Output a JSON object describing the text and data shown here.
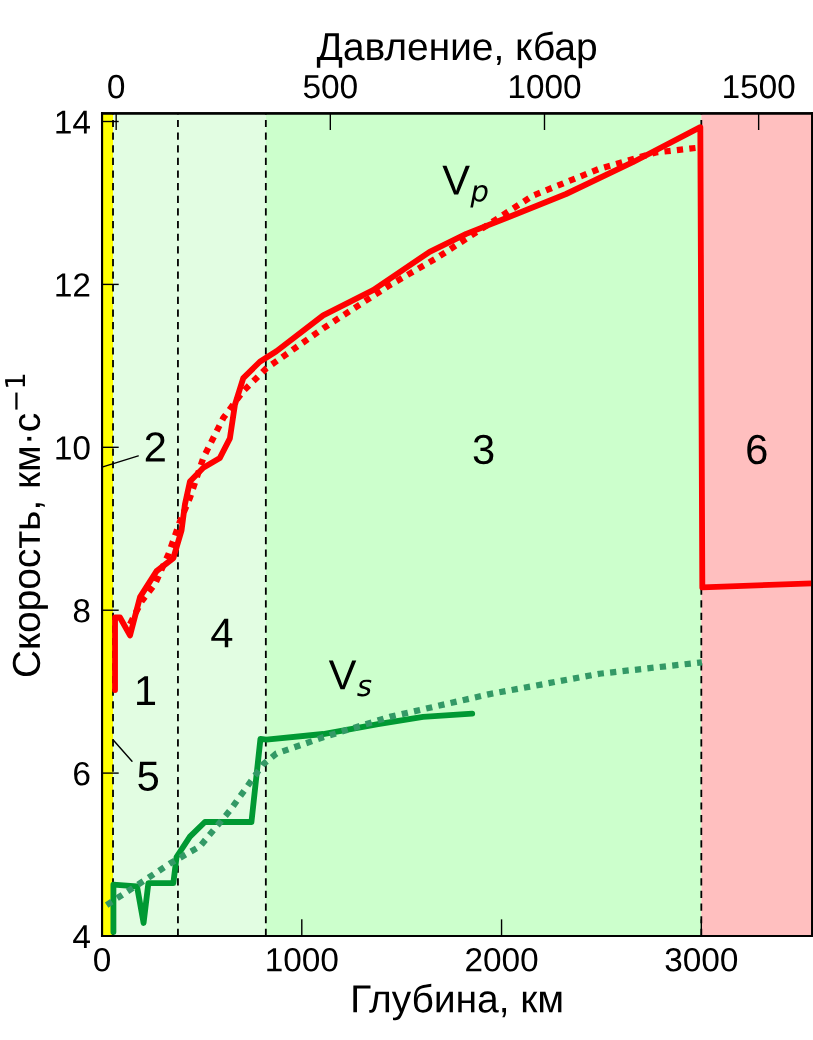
{
  "chart_data": {
    "type": "line",
    "xlabel": "Глубина, км",
    "ylabel": "Скорость, км·с$^{−1}$",
    "x2label": "Давление, кбар",
    "xlim": [
      0,
      3555
    ],
    "ylim": [
      4,
      14.1
    ],
    "xticks": [
      0,
      1000,
      2000,
      3000
    ],
    "yticks": [
      4,
      6,
      8,
      10,
      12,
      14
    ],
    "x2lim": [
      -33,
      1625
    ],
    "x2ticks": [
      0,
      500,
      1000,
      1500
    ],
    "grid": false,
    "bands": [
      {
        "axis": "x",
        "from": 0,
        "to": 55,
        "color": "#ffff00",
        "label": "2"
      },
      {
        "axis": "x",
        "from": 55,
        "to": 380,
        "color": "#e2fde2",
        "label": "1"
      },
      {
        "axis": "x",
        "from": 380,
        "to": 820,
        "color": "#e2fde2",
        "label": "4"
      },
      {
        "axis": "x",
        "from": 820,
        "to": 3000,
        "color": "#ccffcc",
        "label": "3"
      },
      {
        "axis": "x",
        "from": 3000,
        "to": 3555,
        "color": "#ffbfbf",
        "label": "6"
      }
    ],
    "ref_lines": [
      {
        "axis": "x",
        "value": 55,
        "color": "#000000",
        "line_style": "dashed"
      },
      {
        "axis": "x",
        "value": 380,
        "color": "#000000",
        "line_style": "dashed"
      },
      {
        "axis": "x",
        "value": 820,
        "color": "#000000",
        "line_style": "dashed"
      },
      {
        "axis": "x",
        "value": 3000,
        "color": "#000000",
        "line_style": "dashed"
      }
    ],
    "series": [
      {
        "name": "V$_{p}$",
        "color": "#ff0000",
        "line_style": "solid",
        "x": [
          65,
          65,
          90,
          140,
          190,
          273,
          357,
          398,
          415,
          440,
          507,
          590,
          640,
          665,
          707,
          790,
          873,
          1107,
          1357,
          1490,
          1640,
          1823,
          2040,
          2323,
          2657,
          2995,
          3005,
          3555
        ],
        "values": [
          7.02,
          7.91,
          7.91,
          7.69,
          8.16,
          8.48,
          8.64,
          8.98,
          9.3,
          9.58,
          9.75,
          9.87,
          10.11,
          10.52,
          10.85,
          11.05,
          11.18,
          11.62,
          11.93,
          12.15,
          12.4,
          12.62,
          12.83,
          13.11,
          13.5,
          13.93,
          8.28,
          8.33
        ]
      },
      {
        "color": "#ff0000",
        "line_style": "dotted",
        "x": [
          140,
          198,
          265,
          333,
          390,
          440,
          507,
          607,
          707,
          823,
          1107,
          1440,
          1673,
          1823,
          2157,
          2490,
          2773,
          2990
        ],
        "values": [
          7.83,
          8.11,
          8.32,
          8.69,
          9.09,
          9.38,
          9.87,
          10.36,
          10.69,
          10.97,
          11.46,
          11.99,
          12.32,
          12.56,
          13.09,
          13.42,
          13.62,
          13.68
        ]
      },
      {
        "name": "V$_{s}$",
        "color": "#009933",
        "line_style": "solid",
        "x": [
          57,
          57,
          175,
          208,
          232,
          357,
          373,
          440,
          515,
          748,
          793,
          823,
          1107,
          1382,
          1607,
          1853
        ],
        "values": [
          4.05,
          4.63,
          4.61,
          4.16,
          4.65,
          4.65,
          4.97,
          5.22,
          5.4,
          5.4,
          6.42,
          6.41,
          6.48,
          6.6,
          6.69,
          6.73
        ]
      },
      {
        "color": "#339966",
        "line_style": "dotted",
        "x": [
          23,
          167,
          340,
          490,
          640,
          807,
          873,
          1107,
          1440,
          1940,
          2490,
          3003
        ],
        "values": [
          4.38,
          4.61,
          4.89,
          5.1,
          5.54,
          6.11,
          6.24,
          6.44,
          6.69,
          6.97,
          7.22,
          7.36
        ]
      }
    ],
    "annotations": [
      {
        "text": "5",
        "x": 55,
        "y": 6.41
      }
    ]
  }
}
